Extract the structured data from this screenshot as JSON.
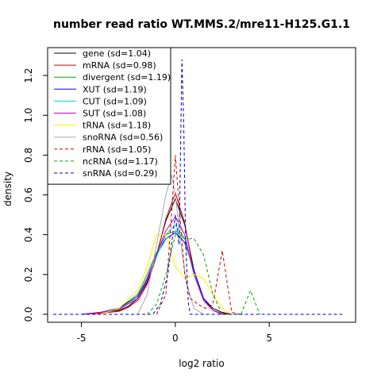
{
  "chart_data": {
    "type": "line",
    "title": "number read ratio WT.MMS.2/mre11-H125.G1.1",
    "xlabel": "log2 ratio",
    "ylabel": "density",
    "xlim": [
      -6.8,
      9.6
    ],
    "ylim": [
      -0.04,
      1.34
    ],
    "x_ticks": [
      -5,
      0,
      5
    ],
    "y_ticks": [
      0.0,
      0.2,
      0.4,
      0.6,
      0.8,
      1.0,
      1.2
    ],
    "x_tick_labels": [
      "-5",
      "0",
      "5"
    ],
    "y_tick_labels": [
      "0.0",
      "0.2",
      "0.4",
      "0.6",
      "0.8",
      "1.0",
      "1.2"
    ],
    "grid": false,
    "legend_position": "top-left",
    "series": [
      {
        "name": "gene (sd=1.04)",
        "color": "#000000",
        "dash": "solid",
        "x": [
          -5,
          -4,
          -3,
          -2.5,
          -2,
          -1.5,
          -1,
          -0.5,
          0,
          0.5,
          1,
          1.5,
          2,
          2.5,
          3
        ],
        "y": [
          0,
          0.01,
          0.02,
          0.04,
          0.08,
          0.16,
          0.3,
          0.47,
          0.58,
          0.45,
          0.22,
          0.08,
          0.03,
          0.01,
          0
        ]
      },
      {
        "name": "mRNA (sd=0.98)",
        "color": "#cc0000",
        "dash": "solid",
        "x": [
          -5,
          -4,
          -3,
          -2.5,
          -2,
          -1.5,
          -1,
          -0.5,
          0,
          0.5,
          1,
          1.5,
          2,
          2.5,
          3
        ],
        "y": [
          0,
          0.005,
          0.015,
          0.035,
          0.07,
          0.15,
          0.29,
          0.48,
          0.61,
          0.46,
          0.2,
          0.07,
          0.02,
          0.005,
          0
        ]
      },
      {
        "name": "divergent (sd=1.19)",
        "color": "#00aa00",
        "dash": "solid",
        "x": [
          -5,
          -4,
          -3,
          -2,
          -1.5,
          -1,
          -0.5,
          0,
          0.5,
          1,
          1.5,
          2,
          2.5
        ],
        "y": [
          0,
          0.01,
          0.03,
          0.1,
          0.2,
          0.31,
          0.4,
          0.42,
          0.38,
          0.22,
          0.08,
          0.02,
          0
        ]
      },
      {
        "name": "XUT (sd=1.19)",
        "color": "#0000ff",
        "dash": "solid",
        "x": [
          -5,
          -4,
          -3,
          -2,
          -1.5,
          -1,
          -0.5,
          0,
          0.5,
          1,
          1.5,
          2,
          2.5
        ],
        "y": [
          0,
          0.01,
          0.03,
          0.09,
          0.18,
          0.3,
          0.38,
          0.41,
          0.36,
          0.22,
          0.08,
          0.02,
          0
        ]
      },
      {
        "name": "CUT (sd=1.09)",
        "color": "#00d0d0",
        "dash": "solid",
        "x": [
          -5,
          -4,
          -3,
          -2,
          -1.5,
          -1,
          -0.5,
          0,
          0.5,
          1,
          1.5,
          2,
          2.5
        ],
        "y": [
          0,
          0.01,
          0.025,
          0.08,
          0.17,
          0.29,
          0.4,
          0.45,
          0.38,
          0.2,
          0.07,
          0.02,
          0
        ]
      },
      {
        "name": "SUT (sd=1.08)",
        "color": "#cc00cc",
        "dash": "solid",
        "x": [
          -5,
          -4,
          -3,
          -2,
          -1.5,
          -1,
          -0.5,
          0,
          0.5,
          1,
          1.5,
          2,
          2.5
        ],
        "y": [
          0,
          0.01,
          0.025,
          0.08,
          0.17,
          0.3,
          0.42,
          0.49,
          0.4,
          0.2,
          0.07,
          0.02,
          0
        ]
      },
      {
        "name": "tRNA (sd=1.18)",
        "color": "#ffee00",
        "dash": "solid",
        "x": [
          -4,
          -3,
          -2,
          -1.5,
          -1,
          -0.5,
          0,
          0.5,
          1,
          1.5,
          2,
          2.5,
          3
        ],
        "y": [
          0,
          0.03,
          0.12,
          0.24,
          0.4,
          0.4,
          0.24,
          0.18,
          0.2,
          0.18,
          0.1,
          0.03,
          0
        ]
      },
      {
        "name": "snoRNA (sd=0.56)",
        "color": "#aaaaaa",
        "dash": "solid",
        "x": [
          -2,
          -1.5,
          -1,
          -0.5,
          -0.2,
          0,
          0.3,
          0.6,
          1,
          1.5
        ],
        "y": [
          0,
          0.1,
          0.35,
          0.6,
          0.7,
          0.6,
          0.35,
          0.15,
          0.03,
          0
        ]
      },
      {
        "name": "rRNA (sd=1.05)",
        "color": "#cc0000",
        "dash": "dashed",
        "x": [
          -1,
          -0.5,
          -0.2,
          0,
          0.2,
          0.5,
          0.8,
          1.2,
          1.6,
          2,
          2.5,
          3,
          3.5
        ],
        "y": [
          0,
          0.1,
          0.5,
          0.8,
          0.55,
          0.2,
          0.08,
          0.05,
          0.03,
          0.05,
          0.32,
          0.01,
          0
        ]
      },
      {
        "name": "ncRNA (sd=1.17)",
        "color": "#00aa00",
        "dash": "dashed",
        "x": [
          -1.5,
          -1,
          -0.5,
          0,
          0.5,
          1,
          1.5,
          2,
          2.5,
          3,
          3.5,
          4,
          4.5
        ],
        "y": [
          0,
          0.05,
          0.2,
          0.4,
          0.38,
          0.38,
          0.3,
          0.1,
          0,
          0,
          0,
          0.12,
          0
        ]
      },
      {
        "name": "snRNA (sd=0.29)",
        "color": "#0000cc",
        "dash": "dashed",
        "x": [
          -6.5,
          -1.2,
          -0.8,
          -0.4,
          -0.2,
          0,
          0.2,
          0.35,
          0.45,
          0.55,
          0.7,
          0.8,
          1,
          9
        ],
        "y": [
          0,
          0,
          0.05,
          0.2,
          0.35,
          0.5,
          0.35,
          1.28,
          0.95,
          0.35,
          0.05,
          0,
          0,
          0
        ]
      }
    ]
  }
}
